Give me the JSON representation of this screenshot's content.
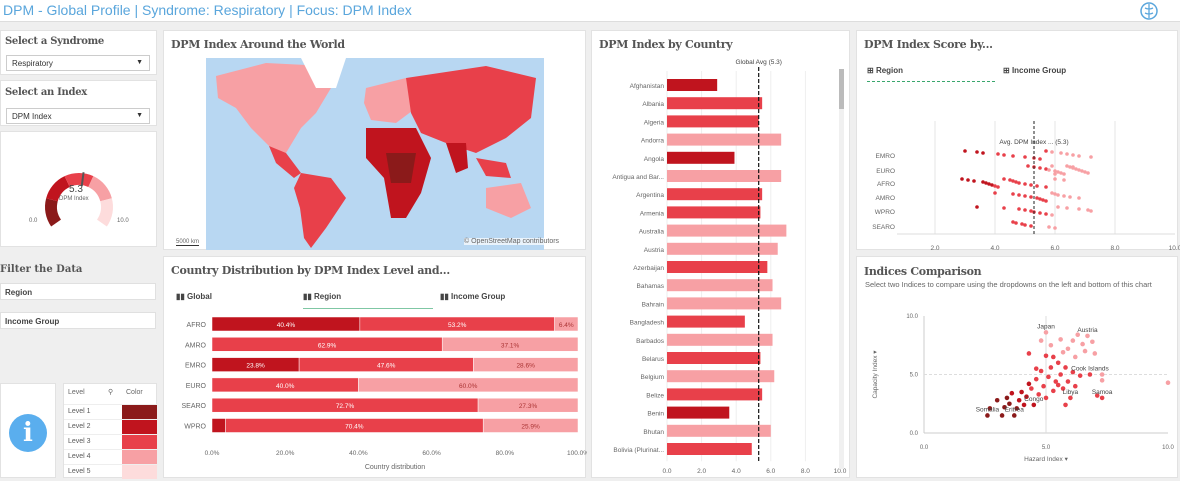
{
  "header": {
    "title": "DPM - Global Profile | Syndrome: Respiratory | Focus: DPM Index",
    "logo": "who-emblem-icon"
  },
  "colors": {
    "title": "#5aa6dc",
    "level1": "#8b1a1a",
    "level2": "#c0141e",
    "level3": "#e8404a",
    "level4": "#f7a0a4",
    "level5": "#fddcdc",
    "ocean": "#b8d7f2",
    "info": "#5aaeee"
  },
  "syndrome": {
    "label": "Select a Syndrome",
    "value": "Respiratory"
  },
  "index_select": {
    "label": "Select an Index",
    "value": "DPM Index"
  },
  "gauge": {
    "value": "5.3",
    "value_num": 5.3,
    "label": "DPM Index",
    "min": "0.0",
    "max": "10.0"
  },
  "filter": {
    "label": "Filter the Data",
    "items": [
      "Region",
      "Income Group"
    ]
  },
  "legend": {
    "col_level": "Level",
    "col_color": "Color",
    "levels": [
      "Level 1",
      "Level 2",
      "Level 3",
      "Level 4",
      "Level 5"
    ]
  },
  "map": {
    "title": "DPM Index Around the World",
    "scale": "5000 km",
    "attribution": "© OpenStreetMap contributors"
  },
  "distribution": {
    "title": "Country Distribution by DPM Index Level and...",
    "tabs": [
      "Global",
      "Region",
      "Income Group"
    ],
    "active_tab": "Region"
  },
  "country_bars": {
    "title": "DPM Index by Country",
    "avg_label": "Global Avg (5.3)"
  },
  "score": {
    "title": "DPM Index Score by...",
    "tabs": [
      "Region",
      "Income Group"
    ],
    "active_tab": "Region",
    "avg_label": "Avg. DPM Index ...   (5.3)"
  },
  "indices": {
    "title": "Indices Comparison",
    "description": "Select two Indices to compare using the dropdowns on the left and bottom of this chart"
  },
  "chart_data": [
    {
      "type": "bar",
      "stacked": true,
      "orientation": "horizontal",
      "xlabel": "Country distribution",
      "categories": [
        "AFRO",
        "AMRO",
        "EMRO",
        "EURO",
        "SEARO",
        "WPRO"
      ],
      "xticks": [
        "0.0%",
        "20.0%",
        "40.0%",
        "60.0%",
        "80.0%",
        "100.0%"
      ],
      "xlim": [
        0,
        100
      ],
      "segments": [
        [
          {
            "level": 2,
            "value": 40.4,
            "label": "40.4%"
          },
          {
            "level": 3,
            "value": 53.2,
            "label": "53.2%"
          },
          {
            "level": 4,
            "value": 6.4,
            "label": "6.4%"
          }
        ],
        [
          {
            "level": 3,
            "value": 62.9,
            "label": "62.9%"
          },
          {
            "level": 4,
            "value": 37.1,
            "label": "37.1%"
          }
        ],
        [
          {
            "level": 2,
            "value": 23.8,
            "label": "23.8%"
          },
          {
            "level": 3,
            "value": 47.6,
            "label": "47.6%"
          },
          {
            "level": 4,
            "value": 28.6,
            "label": "28.6%"
          }
        ],
        [
          {
            "level": 3,
            "value": 40.0,
            "label": "40.0%"
          },
          {
            "level": 4,
            "value": 60.0,
            "label": "60.0%"
          }
        ],
        [
          {
            "level": 3,
            "value": 72.7,
            "label": "72.7%"
          },
          {
            "level": 4,
            "value": 27.3,
            "label": "27.3%"
          }
        ],
        [
          {
            "level": 2,
            "value": 3.7,
            "label": ""
          },
          {
            "level": 3,
            "value": 70.4,
            "label": "70.4%"
          },
          {
            "level": 4,
            "value": 25.9,
            "label": "25.9%"
          }
        ]
      ]
    },
    {
      "type": "bar",
      "orientation": "horizontal",
      "xlim": [
        0,
        10
      ],
      "avg": 5.3,
      "xticks": [
        "0.0",
        "2.0",
        "4.0",
        "6.0",
        "8.0",
        "10.0"
      ],
      "categories": [
        "Afghanistan",
        "Albania",
        "Algeria",
        "Andorra",
        "Angola",
        "Antigua and Bar...",
        "Argentina",
        "Armenia",
        "Australia",
        "Austria",
        "Azerbaijan",
        "Bahamas",
        "Bahrain",
        "Bangladesh",
        "Barbados",
        "Belarus",
        "Belgium",
        "Belize",
        "Benin",
        "Bhutan",
        "Bolivia (Plurinat..."
      ],
      "values": [
        2.9,
        5.5,
        5.3,
        6.6,
        3.9,
        6.6,
        5.5,
        5.4,
        6.9,
        6.4,
        5.8,
        6.1,
        6.6,
        4.5,
        6.1,
        5.4,
        6.2,
        5.5,
        3.6,
        6.0,
        4.9
      ],
      "levels": [
        2,
        3,
        3,
        4,
        2,
        4,
        3,
        3,
        4,
        4,
        3,
        4,
        4,
        3,
        4,
        3,
        4,
        3,
        2,
        4,
        3
      ]
    },
    {
      "type": "scatter",
      "xlabel": "DPM Index (country)",
      "xlim": [
        0,
        10
      ],
      "avg": 5.3,
      "xticks": [
        "2.0",
        "4.0",
        "6.0",
        "8.0",
        "10.0"
      ],
      "categories": [
        "EMRO",
        "EURO",
        "AFRO",
        "AMRO",
        "WPRO",
        "SEARO"
      ],
      "points": {
        "EMRO": [
          3.0,
          3.4,
          3.6,
          4.1,
          4.3,
          4.6,
          5.0,
          5.3,
          5.5,
          5.7,
          5.9,
          6.2,
          6.4,
          6.6,
          6.8,
          7.2
        ],
        "EURO": [
          5.1,
          5.3,
          5.5,
          5.7,
          5.8,
          6.0,
          6.1,
          6.2,
          6.3,
          6.4,
          6.5,
          6.6,
          6.7,
          6.8,
          6.9,
          7.0,
          7.1,
          6.0,
          5.9,
          6.6
        ],
        "AFRO": [
          2.9,
          3.1,
          3.3,
          3.6,
          3.7,
          3.8,
          3.9,
          4.0,
          4.1,
          4.3,
          4.5,
          4.6,
          4.7,
          4.8,
          5.0,
          5.2,
          5.4,
          5.7,
          6.0,
          6.3
        ],
        "AMRO": [
          4.0,
          4.6,
          4.8,
          5.0,
          5.2,
          5.4,
          5.5,
          5.6,
          5.7,
          5.9,
          6.0,
          6.1,
          6.3,
          6.5,
          6.8
        ],
        "WPRO": [
          3.4,
          4.3,
          4.8,
          5.0,
          5.2,
          5.3,
          5.5,
          5.7,
          5.9,
          6.1,
          6.4,
          6.8,
          7.1,
          7.2
        ],
        "SEARO": [
          4.6,
          4.7,
          4.9,
          5.0,
          5.2,
          5.8,
          6.0
        ]
      }
    },
    {
      "type": "scatter",
      "xlabel": "Hazard Index",
      "ylabel": "Capacity Index",
      "xlim": [
        0,
        10
      ],
      "ylim": [
        0,
        10
      ],
      "xticks": [
        "0.0",
        "5.0",
        "10.0"
      ],
      "yticks": [
        "0.0",
        "5.0",
        "10.0"
      ],
      "points": [
        [
          2.6,
          1.5,
          1
        ],
        [
          2.7,
          2.1,
          1
        ],
        [
          3.0,
          2.8,
          1
        ],
        [
          3.2,
          1.5,
          1
        ],
        [
          3.3,
          2.2,
          1
        ],
        [
          3.4,
          3.0,
          1
        ],
        [
          3.5,
          2.5,
          1
        ],
        [
          3.7,
          1.5,
          1
        ],
        [
          3.8,
          2.1,
          1
        ],
        [
          3.6,
          3.4,
          2
        ],
        [
          3.9,
          2.8,
          2
        ],
        [
          4.0,
          3.5,
          2
        ],
        [
          4.1,
          2.4,
          2
        ],
        [
          4.2,
          3.1,
          2
        ],
        [
          4.3,
          4.2,
          2
        ],
        [
          4.5,
          2.4,
          2
        ],
        [
          4.4,
          3.8,
          3
        ],
        [
          4.6,
          4.6,
          3
        ],
        [
          4.7,
          3.3,
          3
        ],
        [
          4.8,
          5.3,
          3
        ],
        [
          4.9,
          4.0,
          3
        ],
        [
          5.0,
          3.0,
          3
        ],
        [
          5.1,
          4.8,
          3
        ],
        [
          5.2,
          5.6,
          3
        ],
        [
          5.3,
          3.6,
          3
        ],
        [
          5.4,
          4.4,
          3
        ],
        [
          5.5,
          6.0,
          3
        ],
        [
          5.6,
          5.0,
          3
        ],
        [
          5.7,
          3.8,
          3
        ],
        [
          5.8,
          5.6,
          3
        ],
        [
          5.9,
          4.4,
          3
        ],
        [
          6.0,
          3.0,
          3
        ],
        [
          6.1,
          5.2,
          3
        ],
        [
          6.2,
          4.0,
          3
        ],
        [
          5.0,
          6.6,
          3
        ],
        [
          4.3,
          6.8,
          3
        ],
        [
          5.3,
          6.5,
          3
        ],
        [
          5.5,
          4.1,
          3
        ],
        [
          4.6,
          5.5,
          3
        ],
        [
          6.4,
          4.9,
          3
        ],
        [
          5.8,
          2.4,
          3
        ],
        [
          6.8,
          5.0,
          3
        ],
        [
          7.1,
          3.2,
          3
        ],
        [
          7.3,
          3.0,
          3
        ],
        [
          5.0,
          8.6,
          4
        ],
        [
          4.8,
          7.9,
          4
        ],
        [
          5.2,
          7.5,
          4
        ],
        [
          5.6,
          8.0,
          4
        ],
        [
          5.9,
          7.2,
          4
        ],
        [
          6.1,
          7.9,
          4
        ],
        [
          6.3,
          8.4,
          4
        ],
        [
          6.5,
          7.6,
          4
        ],
        [
          6.7,
          8.3,
          4
        ],
        [
          6.9,
          7.8,
          4
        ],
        [
          7.0,
          6.8,
          4
        ],
        [
          6.2,
          6.5,
          4
        ],
        [
          5.7,
          6.9,
          4
        ],
        [
          6.6,
          7.0,
          4
        ],
        [
          7.3,
          5.0,
          4
        ],
        [
          7.3,
          4.5,
          4
        ],
        [
          10.0,
          4.3,
          4
        ]
      ],
      "annotations": [
        {
          "text": "Japan",
          "x": 5.0,
          "y": 8.6
        },
        {
          "text": "Austria",
          "x": 6.7,
          "y": 8.3
        },
        {
          "text": "Cook Islands",
          "x": 6.8,
          "y": 5.0
        },
        {
          "text": "Libya",
          "x": 6.0,
          "y": 3.0
        },
        {
          "text": "Samoa",
          "x": 7.3,
          "y": 3.0
        },
        {
          "text": "Congo",
          "x": 4.5,
          "y": 2.4
        },
        {
          "text": "Somalia",
          "x": 2.6,
          "y": 1.5
        },
        {
          "text": "Eritrea",
          "x": 3.7,
          "y": 1.5
        }
      ]
    }
  ]
}
